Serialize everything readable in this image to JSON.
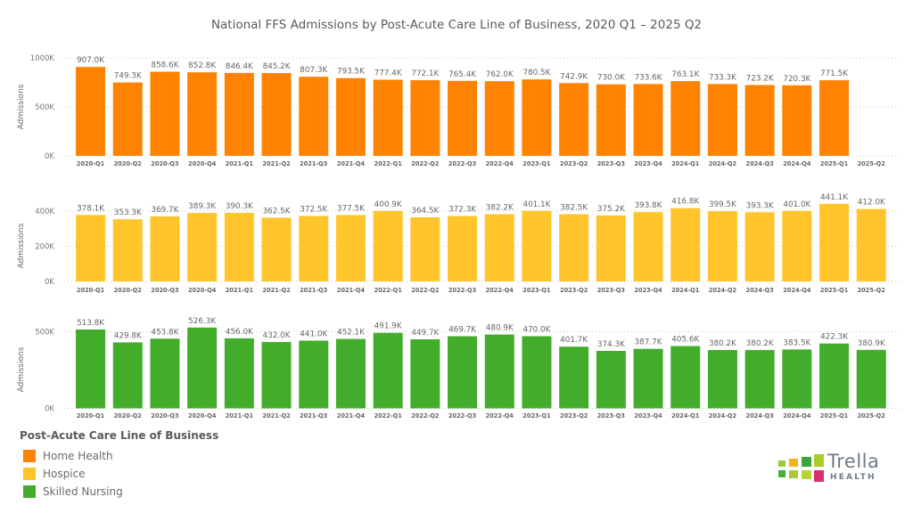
{
  "chart_data": {
    "type": "bar",
    "title": "National FFS Admissions by Post-Acute Care Line of Business, 2020 Q1 – 2025 Q2",
    "categories": [
      "2020-Q1",
      "2020-Q2",
      "2020-Q3",
      "2020-Q4",
      "2021-Q1",
      "2021-Q2",
      "2021-Q3",
      "2021-Q4",
      "2022-Q1",
      "2022-Q2",
      "2022-Q3",
      "2022-Q4",
      "2023-Q1",
      "2023-Q2",
      "2023-Q3",
      "2023-Q4",
      "2024-Q1",
      "2024-Q2",
      "2024-Q3",
      "2024-Q4",
      "2025-Q1",
      "2025-Q2"
    ],
    "panels": [
      {
        "name": "Home Health",
        "ylabel": "Admissions",
        "xlabel": "",
        "color": "#FF8200",
        "yticks": [
          0,
          500,
          1000
        ],
        "ytick_labels": [
          "0K",
          "500K",
          "1000K"
        ],
        "ylim": [
          0,
          1000
        ],
        "grid": true,
        "values": [
          907.0,
          749.3,
          858.6,
          852.8,
          846.4,
          845.2,
          807.3,
          793.5,
          777.4,
          772.1,
          765.4,
          762.0,
          780.5,
          742.9,
          730.0,
          733.6,
          763.1,
          733.3,
          723.2,
          720.3,
          771.5,
          null
        ],
        "value_labels": [
          "907.0K",
          "749.3K",
          "858.6K",
          "852.8K",
          "846.4K",
          "845.2K",
          "807.3K",
          "793.5K",
          "777.4K",
          "772.1K",
          "765.4K",
          "762.0K",
          "780.5K",
          "742.9K",
          "730.0K",
          "733.6K",
          "763.1K",
          "733.3K",
          "723.2K",
          "720.3K",
          "771.5K",
          ""
        ]
      },
      {
        "name": "Hospice",
        "ylabel": "Admissions",
        "xlabel": "",
        "color": "#FFC52A",
        "yticks": [
          0,
          200,
          400
        ],
        "ytick_labels": [
          "0K",
          "200K",
          "400K"
        ],
        "ylim": [
          0,
          400
        ],
        "grid": true,
        "values": [
          378.1,
          353.3,
          369.7,
          389.3,
          390.3,
          362.5,
          372.5,
          377.5,
          400.9,
          364.5,
          372.3,
          382.2,
          401.1,
          382.5,
          375.2,
          393.8,
          416.8,
          399.5,
          393.3,
          401.0,
          441.1,
          412.0
        ],
        "value_labels": [
          "378.1K",
          "353.3K",
          "369.7K",
          "389.3K",
          "390.3K",
          "362.5K",
          "372.5K",
          "377.5K",
          "400.9K",
          "364.5K",
          "372.3K",
          "382.2K",
          "401.1K",
          "382.5K",
          "375.2K",
          "393.8K",
          "416.8K",
          "399.5K",
          "393.3K",
          "401.0K",
          "441.1K",
          "412.0K"
        ]
      },
      {
        "name": "Skilled Nursing",
        "ylabel": "Admissions",
        "xlabel": "",
        "color": "#43AD2B",
        "yticks": [
          0,
          500
        ],
        "ytick_labels": [
          "0K",
          "500K"
        ],
        "ylim": [
          0,
          500
        ],
        "grid": true,
        "values": [
          513.8,
          429.8,
          453.8,
          526.3,
          456.0,
          432.0,
          441.0,
          452.1,
          491.9,
          449.7,
          469.7,
          480.9,
          470.0,
          401.7,
          374.3,
          387.7,
          405.6,
          380.2,
          380.2,
          383.5,
          422.3,
          380.9
        ],
        "value_labels": [
          "513.8K",
          "429.8K",
          "453.8K",
          "526.3K",
          "456.0K",
          "432.0K",
          "441.0K",
          "452.1K",
          "491.9K",
          "449.7K",
          "469.7K",
          "480.9K",
          "470.0K",
          "401.7K",
          "374.3K",
          "387.7K",
          "405.6K",
          "380.2K",
          "380.2K",
          "383.5K",
          "422.3K",
          "380.9K"
        ]
      }
    ],
    "legend": {
      "title": "Post-Acute Care Line of Business",
      "position": "bottom-left",
      "items": [
        {
          "label": "Home Health",
          "color": "#FF8200"
        },
        {
          "label": "Hospice",
          "color": "#FFC52A"
        },
        {
          "label": "Skilled Nursing",
          "color": "#43AD2B"
        }
      ]
    }
  },
  "branding": {
    "logo_word": "Trella",
    "logo_sub": "HEALTH",
    "logo_icon": "tile-grid-icon",
    "logo_colors": [
      "#9BC93A",
      "#F2B31E",
      "#3DA33A",
      "#A9CC2C",
      "#47AE3A",
      "#A8C93A",
      "#B8D434",
      "#D6316E"
    ]
  }
}
